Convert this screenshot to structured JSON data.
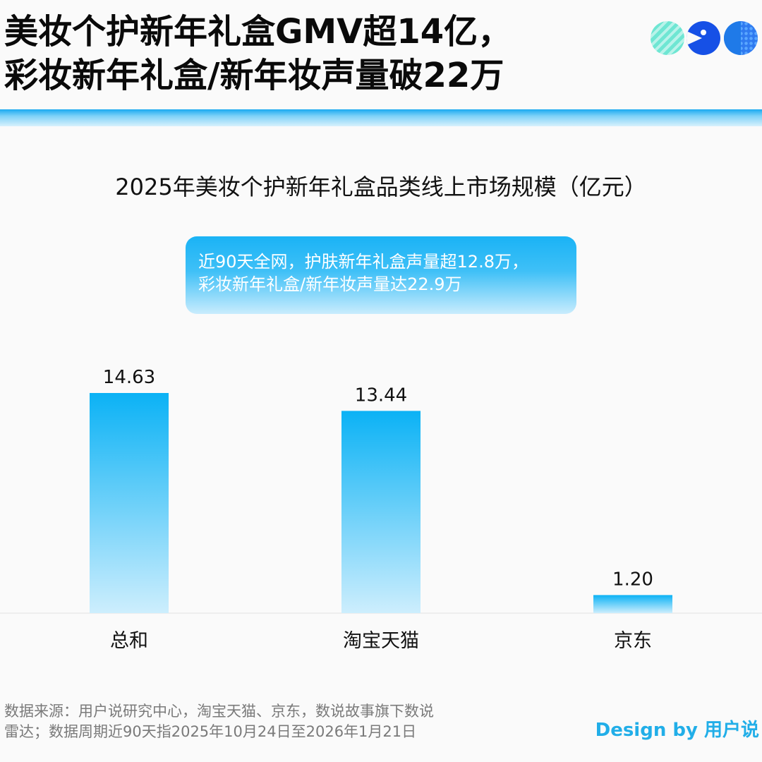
{
  "header": {
    "headline_line1": "美妆个护新年礼盒GMV超14亿，",
    "headline_line2": "彩妆新年礼盒/新年妆声量破22万",
    "logo_icons": [
      "stripe-circle-icon",
      "pacman-icon",
      "dotted-circle-icon"
    ],
    "accent_color": "#1aa9f0"
  },
  "callout": {
    "line1": "近90天全网，护肤新年礼盒声量超12.8万，",
    "line2": "彩妆新年礼盒/新年妆声量达22.9万"
  },
  "chart_data": {
    "type": "bar",
    "title": "2025年美妆个护新年礼盒品类线上市场规模（亿元）",
    "categories": [
      "总和",
      "淘宝天猫",
      "京东"
    ],
    "values": [
      14.63,
      13.44,
      1.2
    ],
    "value_labels": [
      "14.63",
      "13.44",
      "1.20"
    ],
    "xlabel": "",
    "ylabel": "",
    "ylim": [
      0,
      14.63
    ],
    "grid": false,
    "bar_color_top": "#0bb2f5",
    "bar_color_bottom": "#cdeefd"
  },
  "footer": {
    "source_line1": "数据来源：用户说研究中心，淘宝天猫、京东，数说故事旗下数说",
    "source_line2": "雷达；数据周期近90天指2025年10月24日至2026年1月21日",
    "design_by": "Design by 用户说"
  }
}
